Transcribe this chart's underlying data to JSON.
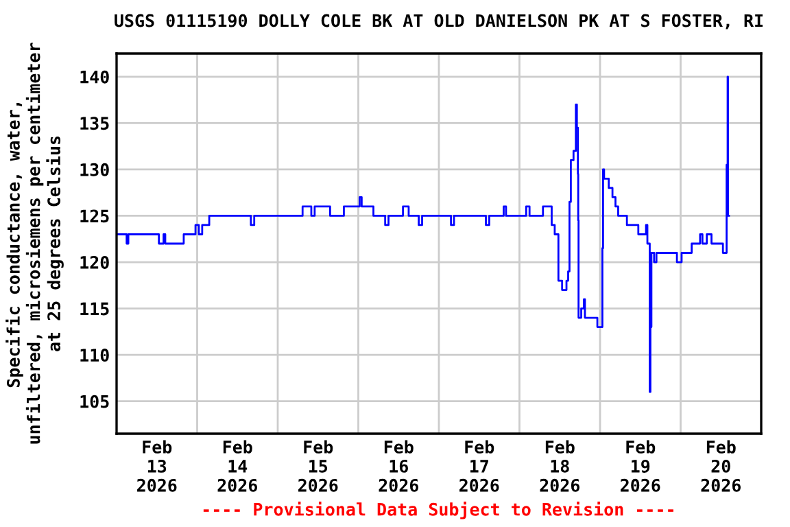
{
  "chart_data": {
    "type": "step",
    "title": "USGS 01115190 DOLLY COLE BK AT OLD DANIELSON PK AT S FOSTER, RI",
    "ylabel": "Specific conductance, water,\nunfiltered, microsiemens per centimeter\nat 25 degrees Celsius",
    "annotations": [
      "---- Provisional Data Subject to Revision ----"
    ],
    "x": [
      "2026-02-13T00:18",
      "2026-02-13T03:00",
      "2026-02-13T03:30",
      "2026-02-13T12:36",
      "2026-02-13T14:00",
      "2026-02-13T14:30",
      "2026-02-13T20:00",
      "2026-02-13T23:30",
      "2026-02-14T00:30",
      "2026-02-14T01:30",
      "2026-02-14T03:36",
      "2026-02-14T16:00",
      "2026-02-14T17:00",
      "2026-02-15T07:24",
      "2026-02-15T10:00",
      "2026-02-15T11:00",
      "2026-02-15T15:36",
      "2026-02-15T19:42",
      "2026-02-16T00:24",
      "2026-02-16T01:00",
      "2026-02-16T04:30",
      "2026-02-16T08:00",
      "2026-02-16T09:00",
      "2026-02-16T13:18",
      "2026-02-16T15:00",
      "2026-02-16T18:00",
      "2026-02-16T19:00",
      "2026-02-17T03:36",
      "2026-02-17T04:30",
      "2026-02-17T14:00",
      "2026-02-17T15:00",
      "2026-02-17T19:18",
      "2026-02-17T20:00",
      "2026-02-18T02:00",
      "2026-02-18T03:00",
      "2026-02-18T07:00",
      "2026-02-18T09:36",
      "2026-02-18T10:30",
      "2026-02-18T11:36",
      "2026-02-18T12:42",
      "2026-02-18T14:00",
      "2026-02-18T14:30",
      "2026-02-18T14:54",
      "2026-02-18T15:18",
      "2026-02-18T16:06",
      "2026-02-18T16:48",
      "2026-02-18T17:06",
      "2026-02-18T17:24",
      "2026-02-18T17:30",
      "2026-02-18T17:36",
      "2026-02-18T18:24",
      "2026-02-18T19:12",
      "2026-02-18T19:30",
      "2026-02-18T23:12",
      "2026-02-19T00:42",
      "2026-02-19T00:54",
      "2026-02-19T01:12",
      "2026-02-19T02:36",
      "2026-02-19T03:42",
      "2026-02-19T04:36",
      "2026-02-19T05:24",
      "2026-02-19T08:00",
      "2026-02-19T11:24",
      "2026-02-19T13:42",
      "2026-02-19T14:06",
      "2026-02-19T14:48",
      "2026-02-19T15:00",
      "2026-02-19T15:18",
      "2026-02-19T16:06",
      "2026-02-19T16:48",
      "2026-02-19T22:54",
      "2026-02-20T00:18",
      "2026-02-20T03:18",
      "2026-02-20T05:48",
      "2026-02-20T06:30",
      "2026-02-20T07:48",
      "2026-02-20T09:12",
      "2026-02-20T12:36",
      "2026-02-20T13:42",
      "2026-02-20T14:00",
      "2026-02-20T14:06",
      "2026-02-20T14:24"
    ],
    "series": [
      {
        "color": "#0000ff",
        "values": [
          123,
          122,
          123,
          122,
          123,
          122,
          123,
          124,
          123,
          124,
          125,
          124,
          125,
          126,
          125,
          126,
          125,
          126,
          127,
          126,
          125,
          124,
          125,
          126,
          125,
          124,
          125,
          124,
          125,
          124,
          125,
          126,
          125,
          126,
          125,
          126,
          124,
          123,
          118,
          117,
          118,
          119,
          126.5,
          131,
          132,
          137,
          134.5,
          129.5,
          124.5,
          114,
          115,
          116,
          114,
          113,
          121.5,
          130,
          129,
          128,
          127,
          126,
          125,
          124,
          123,
          124,
          122,
          106,
          113,
          121,
          120,
          121,
          120,
          121,
          122,
          123,
          122,
          123,
          122,
          121,
          130.5,
          140,
          125,
          125
        ]
      }
    ],
    "xlim": [
      "2026-02-13T00:00",
      "2026-02-21T00:00"
    ],
    "xticks": [
      {
        "value": "2026-02-13T12:00",
        "label": "Feb\n13\n2026"
      },
      {
        "value": "2026-02-14T00:00",
        "label": null
      },
      {
        "value": "2026-02-14T12:00",
        "label": "Feb\n14\n2026"
      },
      {
        "value": "2026-02-15T00:00",
        "label": null
      },
      {
        "value": "2026-02-15T12:00",
        "label": "Feb\n15\n2026"
      },
      {
        "value": "2026-02-16T00:00",
        "label": null
      },
      {
        "value": "2026-02-16T12:00",
        "label": "Feb\n16\n2026"
      },
      {
        "value": "2026-02-17T00:00",
        "label": null
      },
      {
        "value": "2026-02-17T12:00",
        "label": "Feb\n17\n2026"
      },
      {
        "value": "2026-02-18T00:00",
        "label": null
      },
      {
        "value": "2026-02-18T12:00",
        "label": "Feb\n18\n2026"
      },
      {
        "value": "2026-02-19T00:00",
        "label": null
      },
      {
        "value": "2026-02-19T12:00",
        "label": "Feb\n19\n2026"
      },
      {
        "value": "2026-02-20T00:00",
        "label": null
      },
      {
        "value": "2026-02-20T12:00",
        "label": "Feb\n20\n2026"
      }
    ],
    "ylim": [
      101.5,
      142.5
    ],
    "yticks": [
      105,
      110,
      115,
      120,
      125,
      130,
      135,
      140
    ],
    "grid": true
  }
}
